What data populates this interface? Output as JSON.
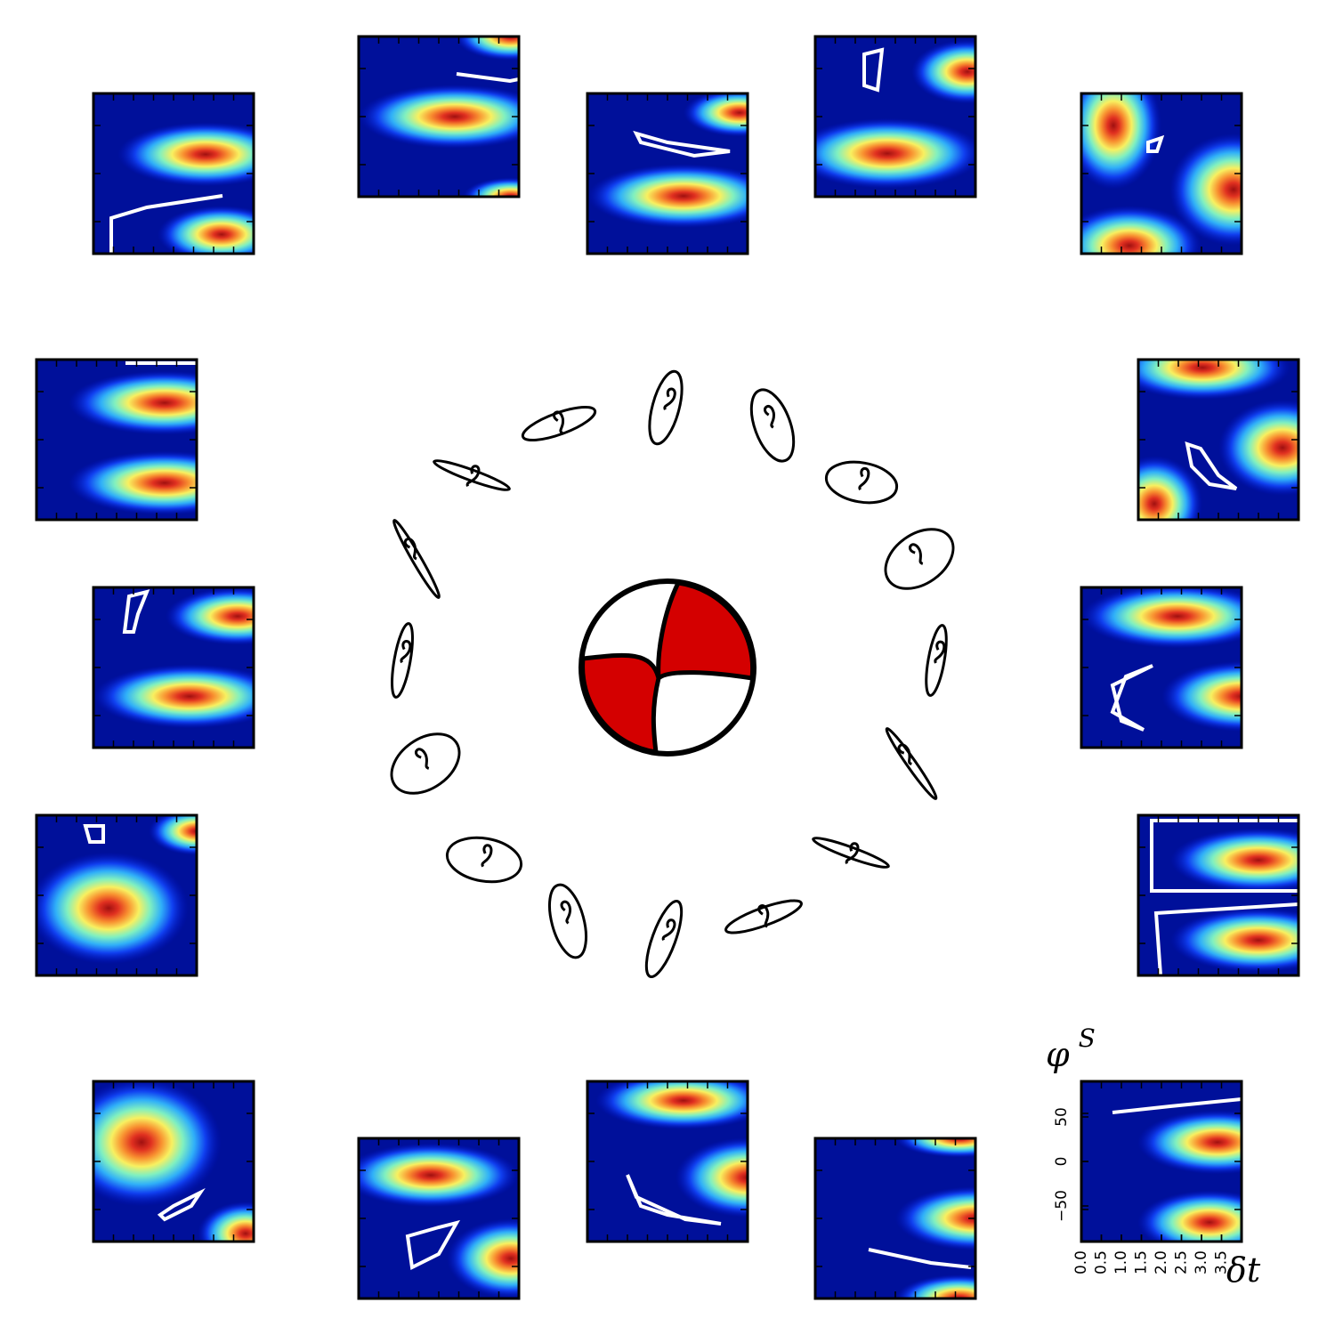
{
  "chart_data": {
    "type": "heatmap",
    "ylabel": "φS",
    "xlabel": "δt",
    "xlim": [
      0,
      4
    ],
    "ylim": [
      -90,
      90
    ],
    "xticks": [
      {
        "value": 0,
        "label": "0.0"
      },
      {
        "value": 0.5,
        "label": "0.5"
      },
      {
        "value": 1,
        "label": "1.0"
      },
      {
        "value": 1.5,
        "label": "1.5"
      },
      {
        "value": 2,
        "label": "2.0"
      },
      {
        "value": 2.5,
        "label": "2.5"
      },
      {
        "value": 3,
        "label": "3.0"
      },
      {
        "value": 3.5,
        "label": "3.5"
      }
    ],
    "yticks": [
      {
        "value": -50,
        "label": "−50"
      },
      0,
      50
    ]
  }
}
